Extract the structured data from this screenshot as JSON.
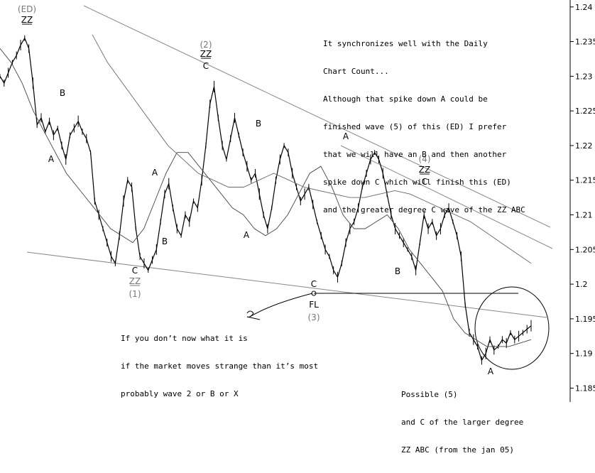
{
  "chart_data": {
    "type": "line",
    "title": "",
    "xlabel": "",
    "ylabel": "",
    "ylim": [
      1.183,
      1.241
    ],
    "y_ticks": [
      "1.24",
      "1.235",
      "1.23",
      "1.225",
      "1.22",
      "1.215",
      "1.21",
      "1.205",
      "1.2",
      "1.195",
      "1.19",
      "1.185"
    ],
    "grid": false,
    "series": [
      {
        "role": "price",
        "color": "#000000",
        "values": [
          1.23,
          1.229,
          1.2305,
          1.232,
          1.233,
          1.2345,
          1.2355,
          1.234,
          1.229,
          1.223,
          1.224,
          1.222,
          1.2235,
          1.2215,
          1.2225,
          1.22,
          1.218,
          1.2215,
          1.2225,
          1.2235,
          1.222,
          1.221,
          1.219,
          1.212,
          1.21,
          1.208,
          1.206,
          1.204,
          1.203,
          1.207,
          1.212,
          1.215,
          1.214,
          1.208,
          1.204,
          1.203,
          1.202,
          1.2035,
          1.205,
          1.209,
          1.213,
          1.2145,
          1.211,
          1.208,
          1.207,
          1.21,
          1.209,
          1.212,
          1.211,
          1.215,
          1.22,
          1.226,
          1.2285,
          1.224,
          1.22,
          1.218,
          1.221,
          1.224,
          1.2215,
          1.219,
          1.217,
          1.215,
          1.216,
          1.213,
          1.21,
          1.208,
          1.211,
          1.215,
          1.218,
          1.22,
          1.219,
          1.216,
          1.214,
          1.212,
          1.213,
          1.214,
          1.2115,
          1.209,
          1.207,
          1.205,
          1.204,
          1.202,
          1.201,
          1.203,
          1.206,
          1.208,
          1.209,
          1.211,
          1.214,
          1.216,
          1.218,
          1.219,
          1.218,
          1.216,
          1.213,
          1.21,
          1.208,
          1.207,
          1.206,
          1.205,
          1.204,
          1.202,
          1.206,
          1.21,
          1.208,
          1.209,
          1.207,
          1.208,
          1.21,
          1.211,
          1.209,
          1.207,
          1.204,
          1.197,
          1.193,
          1.192,
          1.191,
          1.189,
          1.19,
          1.192,
          1.1905,
          1.191,
          1.192,
          1.1915,
          1.193,
          1.192,
          1.1925,
          1.193,
          1.1935,
          1.194
        ]
      },
      {
        "role": "moving-average-short",
        "color": "#444444",
        "values": [
          1.234,
          1.232,
          1.229,
          1.225,
          1.222,
          1.219,
          1.216,
          1.214,
          1.212,
          1.21,
          1.208,
          1.207,
          1.206,
          1.208,
          1.212,
          1.216,
          1.219,
          1.219,
          1.217,
          1.215,
          1.213,
          1.211,
          1.21,
          1.208,
          1.207,
          1.208,
          1.21,
          1.213,
          1.216,
          1.217,
          1.214,
          1.21,
          1.208,
          1.208,
          1.209,
          1.21,
          1.208,
          1.205,
          1.203,
          1.201,
          1.199,
          1.195,
          1.193,
          1.192,
          1.191,
          1.191,
          1.191,
          1.1915,
          1.192
        ]
      },
      {
        "role": "moving-average-long",
        "color": "#666666",
        "values": [
          1.236,
          1.232,
          1.229,
          1.226,
          1.223,
          1.22,
          1.218,
          1.216,
          1.215,
          1.214,
          1.214,
          1.215,
          1.216,
          1.215,
          1.214,
          1.2135,
          1.213,
          1.2125,
          1.2125,
          1.213,
          1.2135,
          1.213,
          1.212,
          1.211,
          1.21,
          1.209,
          1.2075,
          1.206,
          1.2045,
          1.203
        ]
      }
    ],
    "wave_labels": [
      {
        "text": "(ED)",
        "color": "#777777"
      },
      {
        "text": "ZZ",
        "color": "#000000",
        "underline": true
      },
      {
        "text": "B",
        "color": "#000000"
      },
      {
        "text": "A",
        "color": "#000000"
      },
      {
        "text": "C",
        "color": "#000000"
      },
      {
        "text": "ZZ",
        "color": "#777777",
        "underline": true
      },
      {
        "text": "(1)",
        "color": "#777777"
      },
      {
        "text": "A",
        "color": "#000000"
      },
      {
        "text": "B",
        "color": "#000000"
      },
      {
        "text": "(2)",
        "color": "#777777"
      },
      {
        "text": "ZZ",
        "color": "#000000",
        "underline": true
      },
      {
        "text": "C",
        "color": "#000000"
      },
      {
        "text": "B",
        "color": "#000000"
      },
      {
        "text": "A",
        "color": "#000000"
      },
      {
        "text": "C",
        "color": "#000000"
      },
      {
        "text": "FL",
        "color": "#000000"
      },
      {
        "text": "(3)",
        "color": "#777777"
      },
      {
        "text": "A",
        "color": "#000000"
      },
      {
        "text": "(4)",
        "color": "#777777"
      },
      {
        "text": "ZZ",
        "color": "#000000",
        "underline": true
      },
      {
        "text": "C",
        "color": "#000000"
      },
      {
        "text": "B",
        "color": "#000000"
      },
      {
        "text": "A",
        "color": "#000000"
      }
    ],
    "annotations": {
      "top_note": [
        "It synchronizes well with the Daily",
        "Chart Count...",
        "Although that spike down A could be",
        "finished wave (5) of this (ED) I prefer",
        "that we will have an B and then another",
        "spike down C which will finish this (ED)",
        "and the greater degree C wave of the ZZ ABC"
      ],
      "bottom_note": [
        "If you don’t now what it is",
        "if the market moves strange than it’s most",
        "probably wave 2 or B or X"
      ],
      "corner_note": [
        "Possible (5)",
        "and C of the larger degree",
        "ZZ ABC (from the jan 05)"
      ]
    }
  }
}
